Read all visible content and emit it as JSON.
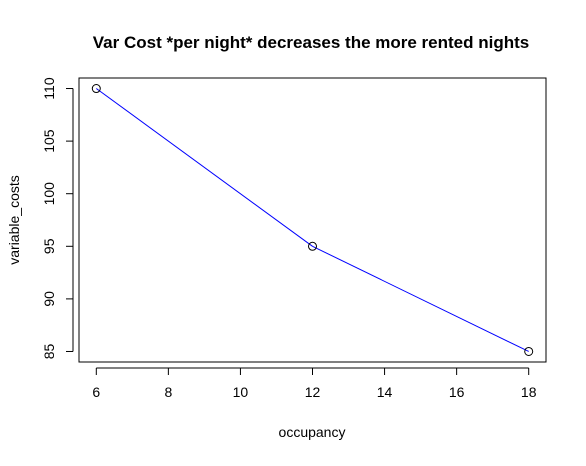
{
  "chart_data": {
    "type": "line",
    "title": "Var Cost *per night* decreases the more rented nights",
    "xlabel": "occupancy",
    "ylabel": "variable_costs",
    "xlim": [
      5.52,
      18.48
    ],
    "ylim": [
      84.0,
      111.0
    ],
    "x_ticks": [
      6,
      8,
      10,
      12,
      14,
      16,
      18
    ],
    "y_ticks": [
      85,
      90,
      95,
      100,
      105,
      110
    ],
    "grid": false,
    "series": [
      {
        "x": [
          6,
          12,
          18
        ],
        "y": [
          110,
          95,
          85
        ],
        "line_color": "#0000ff",
        "marker": "open-circle",
        "marker_color": "#000000"
      }
    ]
  }
}
